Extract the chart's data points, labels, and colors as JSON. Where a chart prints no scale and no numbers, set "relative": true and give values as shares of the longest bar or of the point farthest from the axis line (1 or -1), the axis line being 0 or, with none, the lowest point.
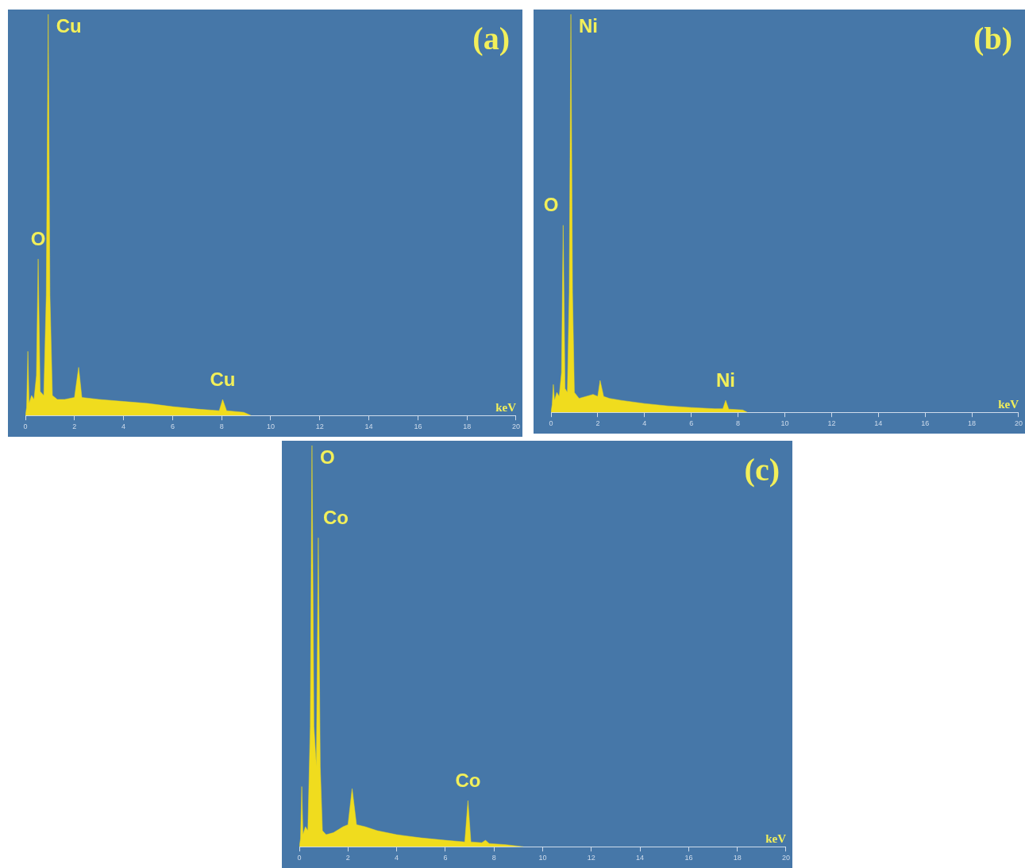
{
  "chart_data": [
    {
      "type": "area",
      "title": "(a)",
      "xlabel": "keV",
      "relative": true,
      "xlim": [
        0,
        20
      ],
      "xticks": [
        0,
        2,
        4,
        6,
        8,
        10,
        12,
        14,
        16,
        18,
        20
      ],
      "grid": false,
      "series": [
        {
          "color": "#f0dc1e",
          "x": [
            0,
            0.05,
            0.1,
            0.15,
            0.25,
            0.35,
            0.45,
            0.52,
            0.6,
            0.75,
            0.85,
            0.93,
            1.0,
            1.1,
            1.3,
            1.6,
            2.0,
            2.17,
            2.3,
            3,
            4,
            5,
            6,
            7,
            7.9,
            8.04,
            8.2,
            8.9,
            9.2
          ],
          "values": [
            0,
            0.02,
            0.16,
            0.03,
            0.05,
            0.04,
            0.1,
            0.39,
            0.06,
            0.05,
            0.3,
            1.0,
            0.3,
            0.05,
            0.04,
            0.04,
            0.045,
            0.12,
            0.045,
            0.04,
            0.035,
            0.03,
            0.022,
            0.016,
            0.012,
            0.04,
            0.012,
            0.008,
            0
          ]
        }
      ],
      "annotations": [
        {
          "text": "Cu",
          "x": 0.93,
          "y": 1.0
        },
        {
          "text": "O",
          "x": 0.52,
          "y": 0.39
        },
        {
          "text": "Cu",
          "x": 8.04,
          "y": 0.04
        }
      ]
    },
    {
      "type": "area",
      "title": "(b)",
      "xlabel": "keV",
      "relative": true,
      "xlim": [
        0,
        20
      ],
      "xticks": [
        0,
        2,
        4,
        6,
        8,
        10,
        12,
        14,
        16,
        18,
        20
      ],
      "grid": false,
      "series": [
        {
          "color": "#f0dc1e",
          "x": [
            0,
            0.05,
            0.1,
            0.15,
            0.25,
            0.35,
            0.45,
            0.52,
            0.6,
            0.7,
            0.78,
            0.85,
            0.92,
            1.0,
            1.2,
            1.5,
            1.8,
            2.0,
            2.1,
            2.25,
            2.5,
            3,
            4,
            5,
            6,
            7,
            7.35,
            7.47,
            7.6,
            8.2,
            8.4
          ],
          "values": [
            0,
            0.02,
            0.07,
            0.03,
            0.05,
            0.04,
            0.1,
            0.47,
            0.06,
            0.05,
            0.3,
            1.0,
            0.3,
            0.05,
            0.035,
            0.04,
            0.045,
            0.04,
            0.08,
            0.04,
            0.035,
            0.03,
            0.022,
            0.016,
            0.012,
            0.009,
            0.009,
            0.03,
            0.008,
            0.006,
            0
          ]
        }
      ],
      "annotations": [
        {
          "text": "Ni",
          "x": 0.85,
          "y": 1.0
        },
        {
          "text": "O",
          "x": 0.52,
          "y": 0.47
        },
        {
          "text": "Ni",
          "x": 7.47,
          "y": 0.03
        }
      ]
    },
    {
      "type": "area",
      "title": "(c)",
      "xlabel": "keV",
      "relative": true,
      "xlim": [
        0,
        20
      ],
      "xticks": [
        0,
        2,
        4,
        6,
        8,
        10,
        12,
        14,
        16,
        18,
        20
      ],
      "grid": false,
      "series": [
        {
          "color": "#f0dc1e",
          "x": [
            0,
            0.05,
            0.1,
            0.15,
            0.25,
            0.35,
            0.45,
            0.52,
            0.6,
            0.7,
            0.78,
            0.86,
            0.95,
            1.1,
            1.4,
            1.8,
            2.0,
            2.17,
            2.35,
            2.7,
            3.2,
            4,
            5,
            6,
            6.8,
            6.93,
            7.05,
            7.5,
            7.65,
            7.8,
            8.5,
            9.2
          ],
          "values": [
            0,
            0.02,
            0.15,
            0.03,
            0.05,
            0.04,
            0.3,
            1.0,
            0.3,
            0.2,
            0.77,
            0.2,
            0.04,
            0.03,
            0.035,
            0.05,
            0.055,
            0.145,
            0.055,
            0.05,
            0.04,
            0.03,
            0.022,
            0.016,
            0.012,
            0.115,
            0.012,
            0.01,
            0.016,
            0.008,
            0.005,
            0
          ]
        }
      ],
      "annotations": [
        {
          "text": "O",
          "x": 0.52,
          "y": 1.0
        },
        {
          "text": "Co",
          "x": 0.78,
          "y": 0.77
        },
        {
          "text": "Co",
          "x": 6.93,
          "y": 0.115
        }
      ]
    }
  ]
}
